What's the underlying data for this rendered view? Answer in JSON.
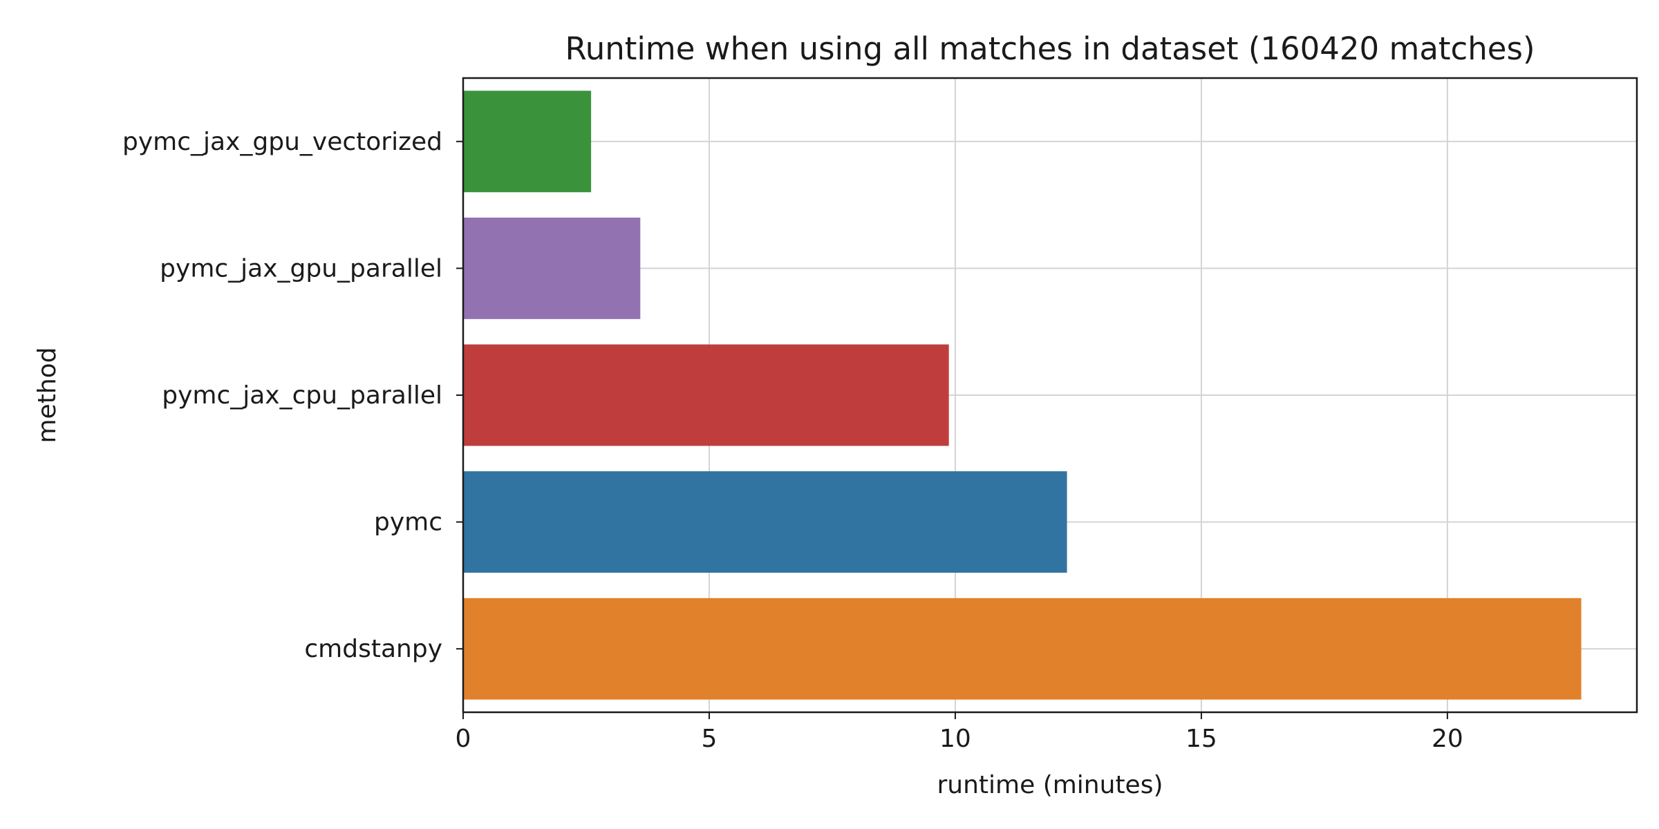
{
  "chart_data": {
    "type": "bar",
    "orientation": "horizontal",
    "title": "Runtime when using all matches in dataset (160420 matches)",
    "xlabel": "runtime (minutes)",
    "ylabel": "method",
    "xlim": [
      0,
      23.85
    ],
    "xticks": [
      0,
      5,
      10,
      15,
      20
    ],
    "grid": true,
    "legend": "none",
    "categories": [
      "pymc_jax_gpu_vectorized",
      "pymc_jax_gpu_parallel",
      "pymc_jax_cpu_parallel",
      "pymc",
      "cmdstanpy"
    ],
    "values": [
      2.6,
      3.6,
      9.87,
      12.27,
      22.72
    ],
    "colors": [
      "#3a923a",
      "#9372b2",
      "#c03d3e",
      "#3274a1",
      "#e1812c"
    ]
  }
}
